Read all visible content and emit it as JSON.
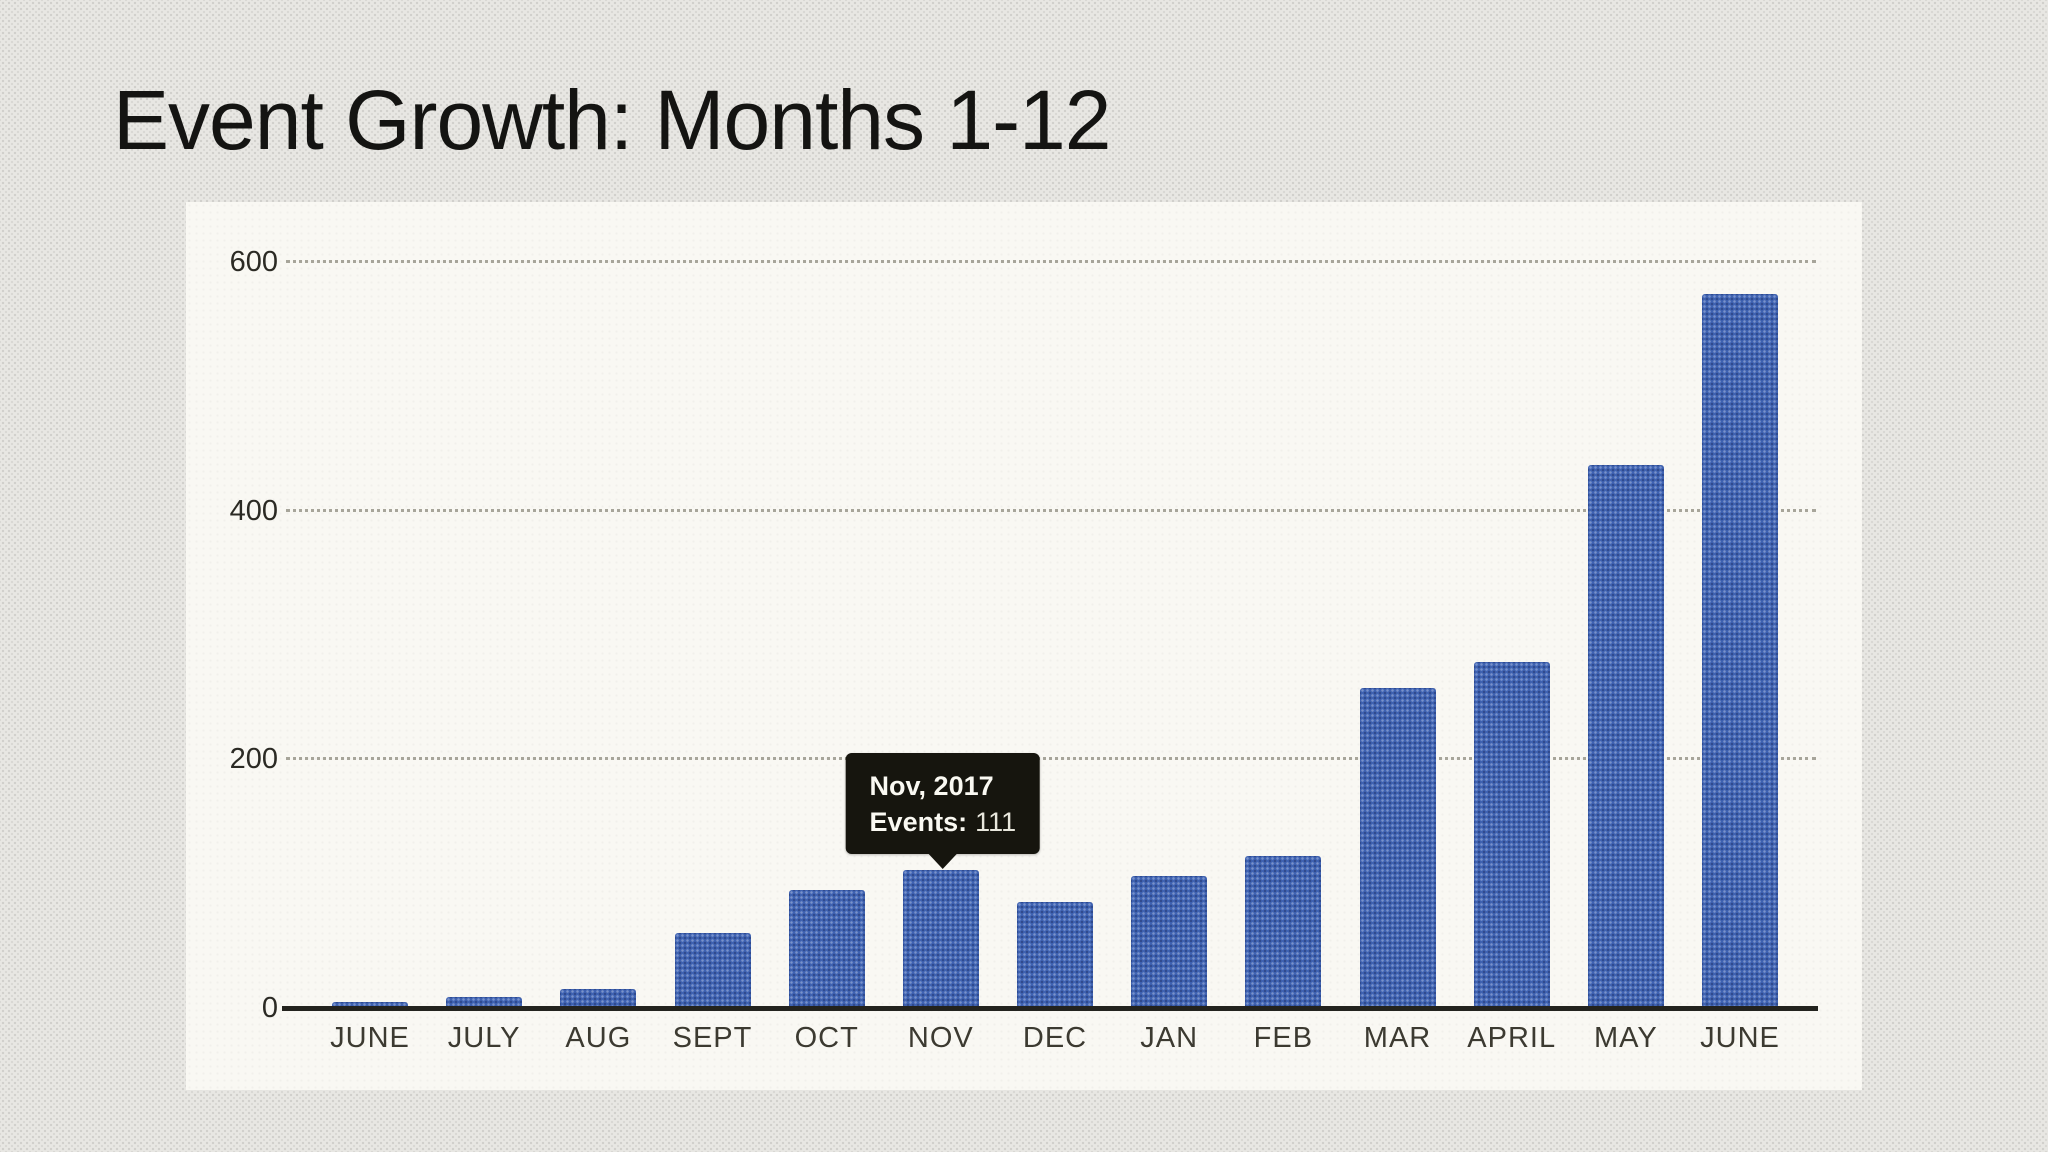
{
  "slide": {
    "title": "Event Growth: Months 1-12",
    "background_color": "#e8e7e3",
    "panel_color": "#f9f8f3"
  },
  "chart_data": {
    "type": "bar",
    "title": "Event Growth: Months 1-12",
    "categories": [
      "JUNE",
      "JULY",
      "AUG",
      "SEPT",
      "OCT",
      "NOV",
      "DEC",
      "JAN",
      "FEB",
      "MAR",
      "APRIL",
      "MAY",
      "JUNE"
    ],
    "values": [
      5,
      9,
      15,
      60,
      95,
      111,
      85,
      106,
      122,
      257,
      278,
      437,
      574
    ],
    "series_name": "Events",
    "xlabel": "",
    "ylabel": "",
    "ylim": [
      0,
      600
    ],
    "y_ticks": [
      0,
      200,
      400,
      600
    ],
    "grid": "horizontal-dotted",
    "legend": "none",
    "bar_color": "#3f63b3",
    "axis_color": "#23231e",
    "tooltip": {
      "title": "Nov, 2017",
      "label": "Events:",
      "value": "111",
      "target_index": 5
    }
  }
}
